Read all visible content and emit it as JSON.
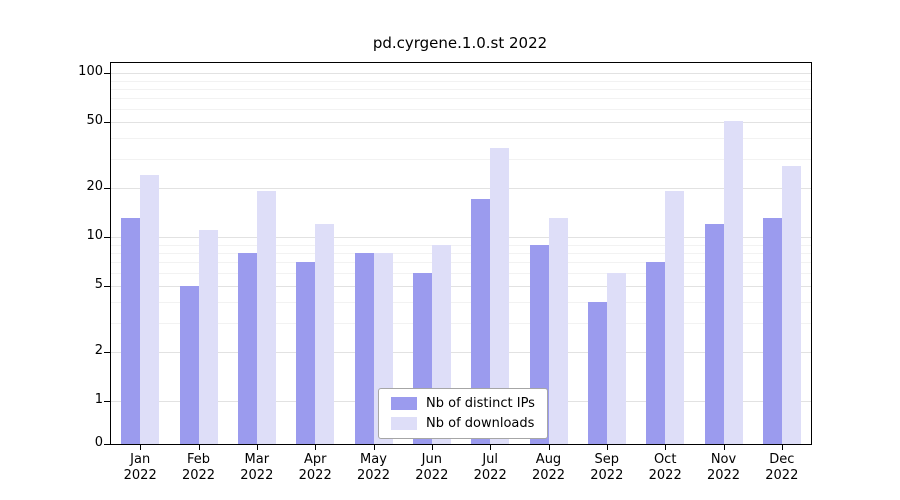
{
  "chart_data": {
    "type": "bar",
    "title": "pd.cyrgene.1.0.st 2022",
    "categories": [
      "Jan",
      "Feb",
      "Mar",
      "Apr",
      "May",
      "Jun",
      "Jul",
      "Aug",
      "Sep",
      "Oct",
      "Nov",
      "Dec"
    ],
    "year_label": "2022",
    "series": [
      {
        "name": "Nb of distinct IPs",
        "color": "#9b9bee",
        "values": [
          13,
          5,
          8,
          7,
          8,
          6,
          17,
          9,
          4,
          7,
          12,
          13
        ]
      },
      {
        "name": "Nb of downloads",
        "color": "#dedef8",
        "values": [
          24,
          11,
          19,
          12,
          8,
          9,
          35,
          13,
          6,
          19,
          51,
          27
        ]
      }
    ],
    "y_ticks": [
      0,
      1,
      2,
      5,
      10,
      20,
      50,
      100
    ],
    "y_minor_ticks": [
      3,
      4,
      6,
      7,
      8,
      9,
      30,
      40,
      60,
      70,
      80,
      90
    ],
    "y_scale": "log",
    "ylim": [
      0,
      100
    ],
    "xlabel": "",
    "ylabel": "",
    "grid": true,
    "legend_position": "bottom-center",
    "colors": {
      "distinct_ips": "#9b9bee",
      "downloads": "#dedef8",
      "grid_major": "#e2e2e2",
      "grid_minor": "#f2f2f2",
      "background": "#ffffff"
    }
  }
}
